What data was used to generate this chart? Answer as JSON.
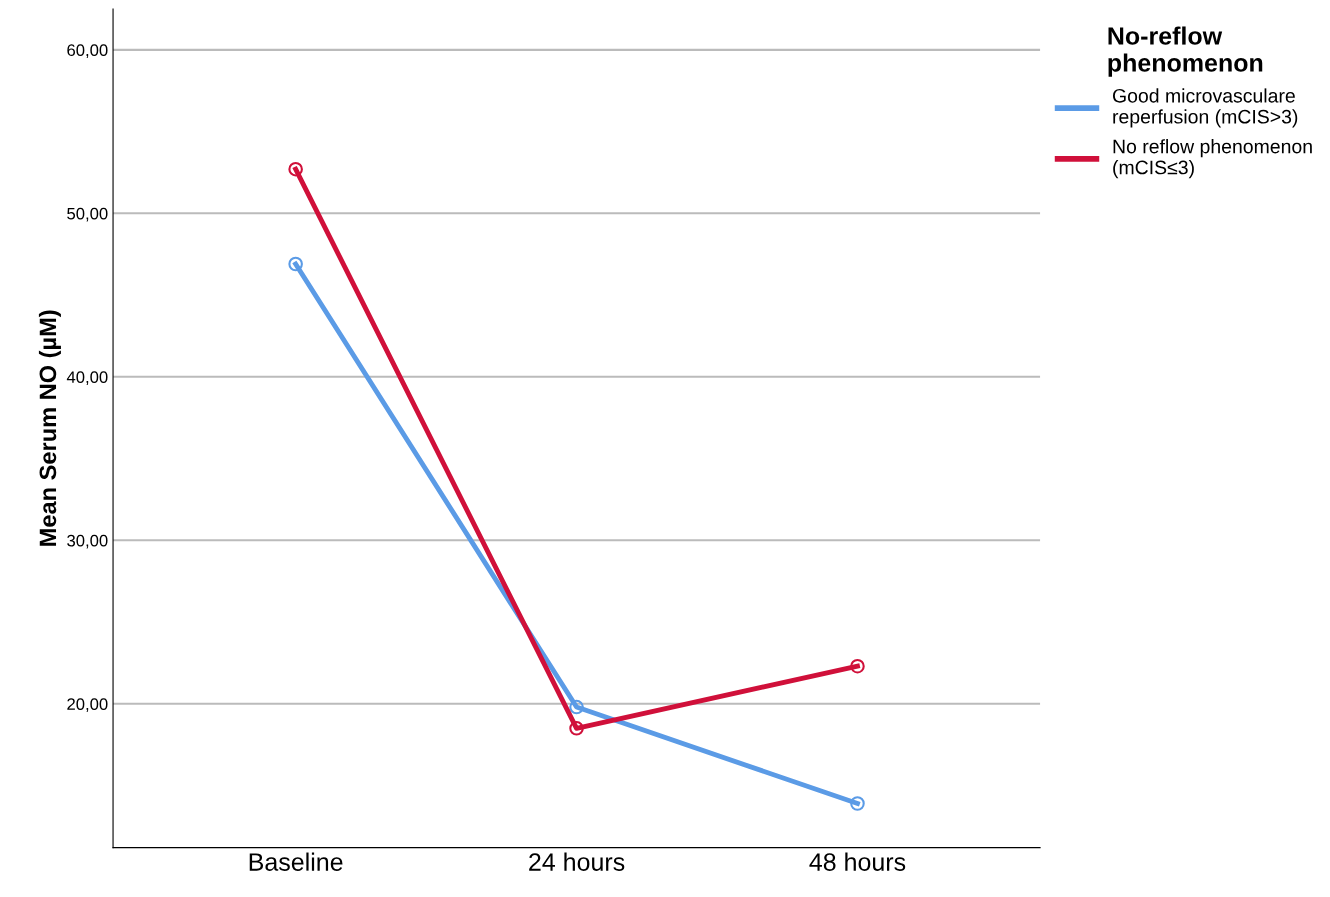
{
  "chart_data": {
    "type": "line",
    "ylabel": "Mean Serum NO (µM)",
    "legend_title": "No-reflow\nphenomenon",
    "categories": [
      "Baseline",
      "24 hours",
      "48 hours"
    ],
    "series": [
      {
        "name": "Good microvasculare\nreperfusion (mCIS>3)",
        "color": "#5b9be6",
        "values": [
          46.9,
          19.8,
          13.9
        ]
      },
      {
        "name": "No reflow phenomenon\n(mCIS≤3)",
        "color": "#d0103a",
        "values": [
          52.7,
          18.5,
          22.3
        ]
      }
    ],
    "ylim": [
      11.2,
      62.5
    ],
    "yticks": [
      {
        "value": 20,
        "label": "20,00"
      },
      {
        "value": 30,
        "label": "30,00"
      },
      {
        "value": 40,
        "label": "40,00"
      },
      {
        "value": 50,
        "label": "50,00"
      },
      {
        "value": 60,
        "label": "60,00"
      }
    ],
    "grid": "y",
    "legend": "top right",
    "marker": "circle",
    "line_style": "solid"
  }
}
